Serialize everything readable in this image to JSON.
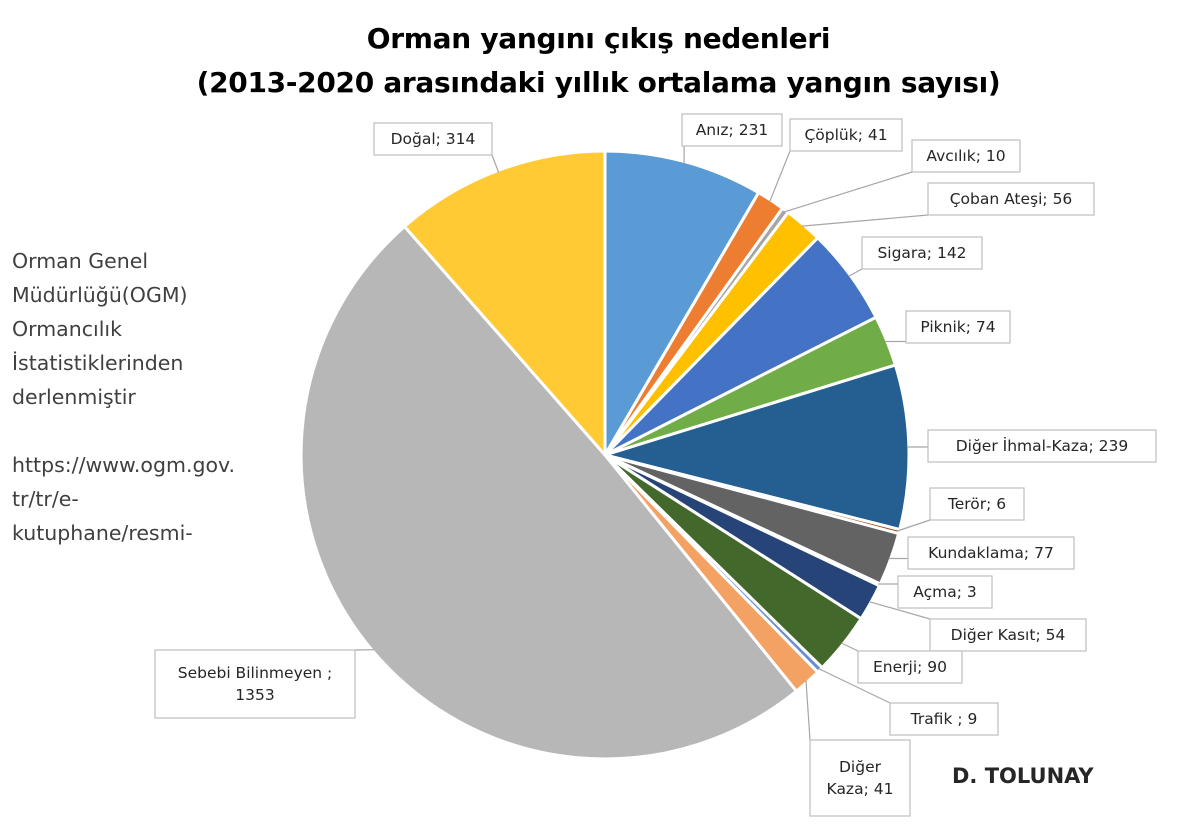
{
  "chart_data": {
    "type": "pie",
    "title": "Orman yangını çıkış nedenleri",
    "subtitle": "(2013-2020 arasındaki yıllık ortalama yangın sayısı)",
    "start_angle_deg": 0,
    "direction": "clockwise",
    "slices": [
      {
        "label": "Anız",
        "value": 231,
        "color": "#5b9bd5"
      },
      {
        "label": "Çöplük",
        "value": 41,
        "color": "#ed7d31"
      },
      {
        "label": "Avcılık",
        "value": 10,
        "color": "#a5a5a5"
      },
      {
        "label": "Çoban Ateşi",
        "value": 56,
        "color": "#ffc000"
      },
      {
        "label": "Sigara",
        "value": 142,
        "color": "#4472c4"
      },
      {
        "label": "Piknik",
        "value": 74,
        "color": "#70ad47"
      },
      {
        "label": "Diğer İhmal-Kaza",
        "value": 239,
        "color": "#255e91"
      },
      {
        "label": "Terör",
        "value": 6,
        "color": "#9e480e"
      },
      {
        "label": "Kundaklama",
        "value": 77,
        "color": "#636363"
      },
      {
        "label": "Açma",
        "value": 3,
        "color": "#997300"
      },
      {
        "label": "Diğer Kasıt",
        "value": 54,
        "color": "#264478"
      },
      {
        "label": "Enerji",
        "value": 90,
        "color": "#43682b"
      },
      {
        "label": "Trafik",
        "value": 9,
        "color": "#698ed0"
      },
      {
        "label": "Diğer Kaza",
        "value": 41,
        "color": "#f4a164"
      },
      {
        "label": "Sebebi Bilinmeyen",
        "value": 1353,
        "color": "#b7b7b7"
      },
      {
        "label": "Doğal",
        "value": 314,
        "color": "#ffca33"
      }
    ],
    "data_labels": [
      {
        "lines": [
          "Anız; 231"
        ]
      },
      {
        "lines": [
          "Çöplük; 41"
        ]
      },
      {
        "lines": [
          "Avcılık; 10"
        ]
      },
      {
        "lines": [
          "Çoban Ateşi; 56"
        ]
      },
      {
        "lines": [
          "Sigara; 142"
        ]
      },
      {
        "lines": [
          "Piknik; 74"
        ]
      },
      {
        "lines": [
          "Diğer  İhmal-Kaza; 239"
        ]
      },
      {
        "lines": [
          "Terör; 6"
        ]
      },
      {
        "lines": [
          "Kundaklama; 77"
        ]
      },
      {
        "lines": [
          "Açma; 3"
        ]
      },
      {
        "lines": [
          "Diğer Kasıt; 54"
        ]
      },
      {
        "lines": [
          "Enerji; 90"
        ]
      },
      {
        "lines": [
          "Trafik ; 9"
        ]
      },
      {
        "lines": [
          "Diğer",
          "Kaza; 41"
        ]
      },
      {
        "lines": [
          "Sebebi Bilinmeyen ;",
          "1353"
        ]
      },
      {
        "lines": [
          "Doğal; 314"
        ]
      }
    ],
    "legend": "none"
  },
  "source_note": {
    "line1": "Orman Genel",
    "line2": "Müdürlüğü(OGM)",
    "line3": "Ormancılık",
    "line4": "İstatistiklerinden",
    "line5": "derlenmiştir",
    "line6": "https://www.ogm.gov.",
    "line7": "tr/tr/e-",
    "line8": "kutuphane/resmi-"
  },
  "author": "D. TOLUNAY"
}
